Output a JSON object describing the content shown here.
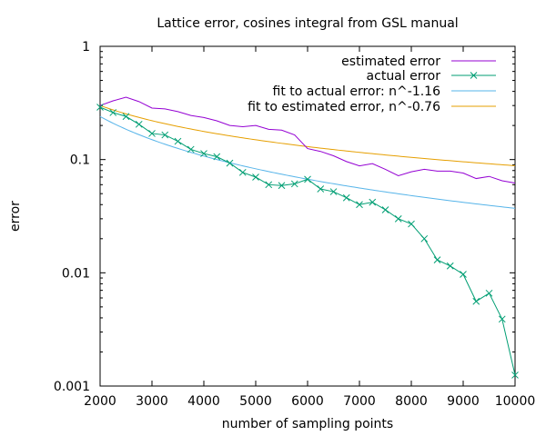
{
  "chart_data": {
    "type": "line",
    "title": "Lattice error, cosines integral from GSL manual",
    "xlabel": "number of sampling points",
    "ylabel": "error",
    "xlim": [
      2000,
      10000
    ],
    "ylim": [
      0.001,
      1
    ],
    "yscale": "log",
    "grid": false,
    "legend_position": "top-right",
    "xticks": [
      {
        "value": 2000,
        "label": "2000"
      },
      {
        "value": 3000,
        "label": "3000"
      },
      {
        "value": 4000,
        "label": "4000"
      },
      {
        "value": 5000,
        "label": "5000"
      },
      {
        "value": 6000,
        "label": "6000"
      },
      {
        "value": 7000,
        "label": "7000"
      },
      {
        "value": 8000,
        "label": "8000"
      },
      {
        "value": 9000,
        "label": "9000"
      },
      {
        "value": 10000,
        "label": "10000"
      }
    ],
    "yticks": [
      {
        "value": 0.001,
        "label": "0.001"
      },
      {
        "value": 0.01,
        "label": "0.01"
      },
      {
        "value": 0.1,
        "label": "0.1"
      },
      {
        "value": 1,
        "label": "1"
      }
    ],
    "series": [
      {
        "name": "estimated error",
        "color": "#9400d3",
        "marker": "none",
        "x": [
          2000,
          2250,
          2500,
          2750,
          3000,
          3250,
          3500,
          3750,
          4000,
          4250,
          4500,
          4750,
          5000,
          5250,
          5500,
          5750,
          6000,
          6250,
          6500,
          6750,
          7000,
          7250,
          7500,
          7750,
          8000,
          8250,
          8500,
          8750,
          9000,
          9250,
          9500,
          9750,
          10000
        ],
        "y": [
          0.3,
          0.33,
          0.355,
          0.325,
          0.285,
          0.28,
          0.265,
          0.245,
          0.235,
          0.22,
          0.2,
          0.195,
          0.2,
          0.185,
          0.182,
          0.165,
          0.125,
          0.118,
          0.108,
          0.096,
          0.088,
          0.092,
          0.082,
          0.072,
          0.078,
          0.082,
          0.079,
          0.079,
          0.076,
          0.068,
          0.071,
          0.065,
          0.062
        ]
      },
      {
        "name": "actual error",
        "color": "#009e73",
        "marker": "x",
        "x": [
          2000,
          2250,
          2500,
          2750,
          3000,
          3250,
          3500,
          3750,
          4000,
          4250,
          4500,
          4750,
          5000,
          5250,
          5500,
          5750,
          6000,
          6250,
          6500,
          6750,
          7000,
          7250,
          7500,
          7750,
          8000,
          8250,
          8500,
          8750,
          9000,
          9250,
          9500,
          9750,
          10000
        ],
        "y": [
          0.29,
          0.26,
          0.24,
          0.205,
          0.17,
          0.165,
          0.145,
          0.123,
          0.113,
          0.106,
          0.093,
          0.077,
          0.07,
          0.06,
          0.059,
          0.061,
          0.067,
          0.055,
          0.052,
          0.046,
          0.04,
          0.042,
          0.036,
          0.03,
          0.027,
          0.02,
          0.013,
          0.0115,
          0.0097,
          0.0056,
          0.0066,
          0.0039,
          0.00125
        ]
      },
      {
        "name": "fit to actual error: n^-1.16",
        "color": "#56b4e9",
        "marker": "none",
        "fit": {
          "ref_x": 2000,
          "ref_y": 0.24,
          "exponent": -1.16
        }
      },
      {
        "name": "fit to estimated error, n^-0.76",
        "color": "#e69f00",
        "marker": "none",
        "fit": {
          "ref_x": 2000,
          "ref_y": 0.3,
          "exponent": -0.76
        }
      }
    ]
  }
}
